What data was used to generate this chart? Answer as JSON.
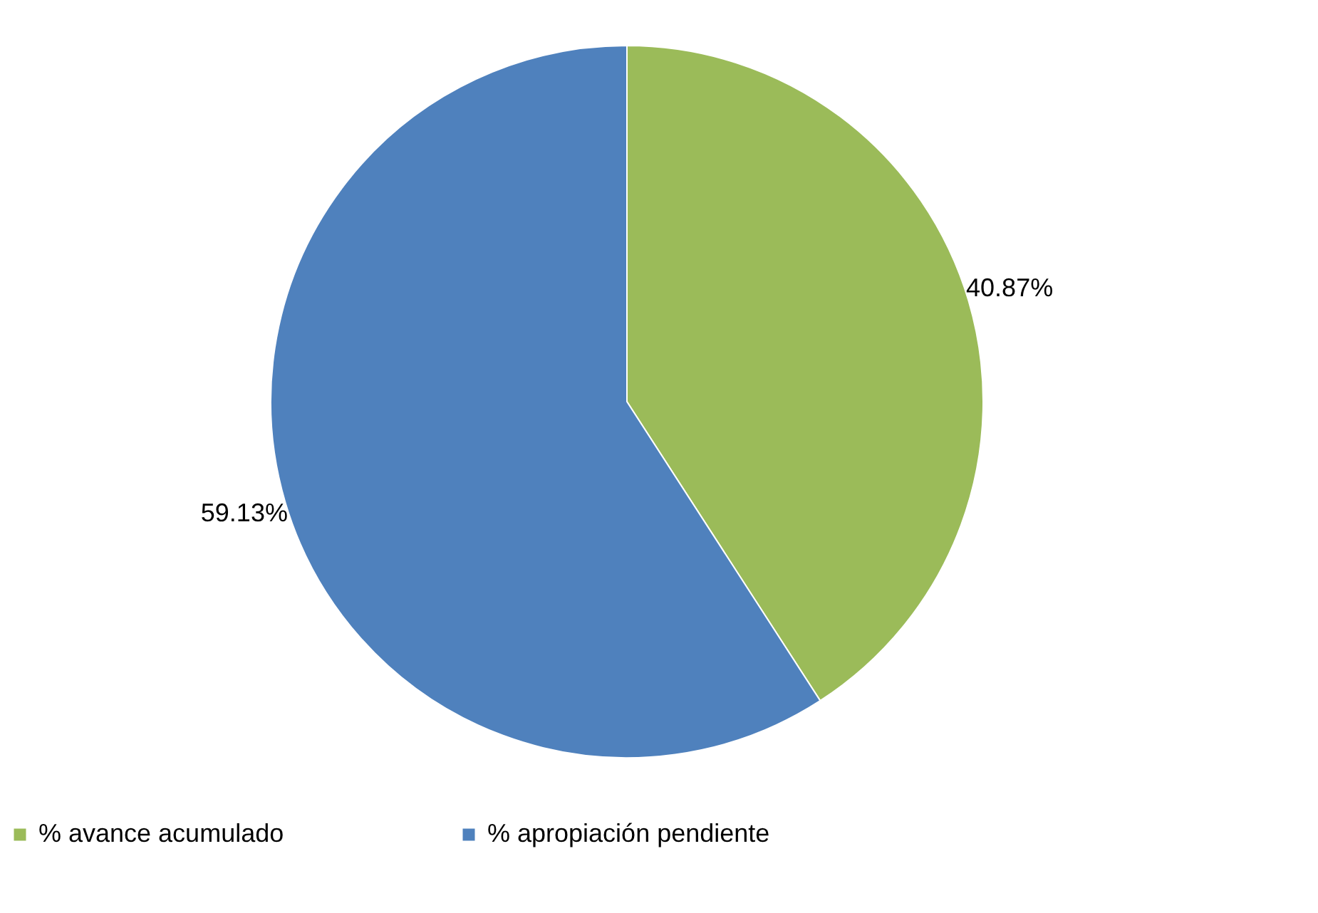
{
  "chart_data": {
    "type": "pie",
    "categories": [
      "% avance acumulado",
      "% apropiación pendiente"
    ],
    "values": [
      40.87,
      59.13
    ],
    "colors": [
      "#9bbb59",
      "#4f81bd"
    ],
    "value_labels": [
      "40.87%",
      "59.13%"
    ],
    "legend": "bottom"
  }
}
